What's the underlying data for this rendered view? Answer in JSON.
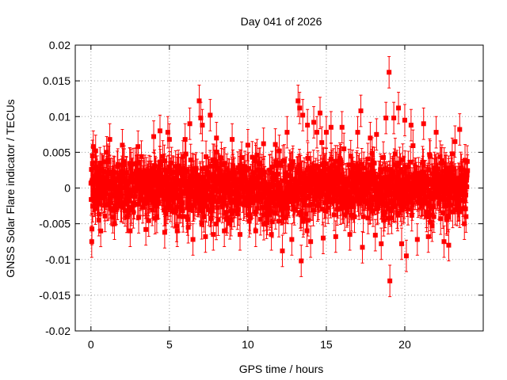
{
  "chart_data": {
    "type": "scatter",
    "title": "Day 041 of 2026",
    "xlabel": "GPS time / hours",
    "ylabel": "GNSS Solar Flare indicator / TECUs",
    "xlim": [
      -1,
      25
    ],
    "ylim": [
      -0.02,
      0.02
    ],
    "xticks": [
      0,
      5,
      10,
      15,
      20
    ],
    "yticks": [
      -0.02,
      -0.015,
      -0.01,
      -0.005,
      0,
      0.005,
      0.01,
      0.015,
      0.02
    ],
    "ytick_labels": [
      "-0.02",
      "-0.015",
      "-0.01",
      "-0.005",
      "0",
      "0.005",
      "0.01",
      "0.015",
      "0.02"
    ],
    "xtick_labels": [
      "0",
      "5",
      "10",
      "15",
      "20"
    ],
    "grid": true,
    "series": [
      {
        "color": "#ff0000",
        "marker": "square",
        "error_bars": true,
        "error": 0.0022,
        "points": [
          [
            0.05,
            -0.0075
          ],
          [
            0.1,
            0.0045
          ],
          [
            0.15,
            0.0058
          ],
          [
            0.3,
            0.0052
          ],
          [
            0.5,
            -0.0045
          ],
          [
            1.0,
            0.005
          ],
          [
            1.2,
            0.0068
          ],
          [
            1.5,
            -0.005
          ],
          [
            2.0,
            0.006
          ],
          [
            2.5,
            -0.006
          ],
          [
            3.0,
            0.0058
          ],
          [
            3.5,
            -0.0058
          ],
          [
            4.0,
            0.0072
          ],
          [
            4.4,
            0.008
          ],
          [
            4.7,
            -0.0062
          ],
          [
            4.9,
            0.0078
          ],
          [
            5.0,
            0.0068
          ],
          [
            5.5,
            -0.006
          ],
          [
            6.0,
            0.0068
          ],
          [
            6.2,
            -0.0055
          ],
          [
            6.3,
            0.009
          ],
          [
            6.5,
            -0.0072
          ],
          [
            6.9,
            0.0122
          ],
          [
            7.0,
            0.0098
          ],
          [
            7.1,
            0.0088
          ],
          [
            7.3,
            -0.0068
          ],
          [
            7.6,
            0.0102
          ],
          [
            7.8,
            -0.0065
          ],
          [
            8.0,
            0.007
          ],
          [
            8.5,
            -0.006
          ],
          [
            9.0,
            0.0068
          ],
          [
            9.5,
            -0.0065
          ],
          [
            10.0,
            0.006
          ],
          [
            10.5,
            -0.006
          ],
          [
            11.0,
            0.0062
          ],
          [
            11.5,
            -0.0065
          ],
          [
            12.0,
            0.0052
          ],
          [
            12.2,
            -0.0088
          ],
          [
            12.5,
            0.0078
          ],
          [
            12.8,
            -0.0072
          ],
          [
            13.2,
            0.0122
          ],
          [
            13.3,
            0.0112
          ],
          [
            13.4,
            -0.0102
          ],
          [
            13.5,
            0.0102
          ],
          [
            13.8,
            0.0088
          ],
          [
            14.0,
            -0.0075
          ],
          [
            14.2,
            0.0092
          ],
          [
            14.4,
            0.0078
          ],
          [
            14.6,
            0.0105
          ],
          [
            14.8,
            -0.007
          ],
          [
            15.0,
            0.0078
          ],
          [
            15.3,
            0.0085
          ],
          [
            15.6,
            -0.0068
          ],
          [
            16.0,
            0.0085
          ],
          [
            16.5,
            -0.0065
          ],
          [
            17.0,
            0.0078
          ],
          [
            17.2,
            0.0108
          ],
          [
            17.3,
            -0.0083
          ],
          [
            17.8,
            0.007
          ],
          [
            18.2,
            0.0075
          ],
          [
            18.5,
            -0.0078
          ],
          [
            18.8,
            0.0098
          ],
          [
            19.0,
            0.0162
          ],
          [
            19.05,
            -0.013
          ],
          [
            19.3,
            0.0098
          ],
          [
            19.6,
            0.0112
          ],
          [
            19.8,
            -0.0078
          ],
          [
            20.0,
            0.0095
          ],
          [
            20.1,
            -0.0095
          ],
          [
            20.4,
            0.0088
          ],
          [
            20.8,
            -0.0072
          ],
          [
            21.2,
            0.009
          ],
          [
            21.5,
            -0.0068
          ],
          [
            22.0,
            0.0078
          ],
          [
            22.5,
            -0.0075
          ],
          [
            22.8,
            -0.008
          ],
          [
            23.2,
            0.0065
          ],
          [
            23.5,
            0.0082
          ],
          [
            23.8,
            -0.005
          ],
          [
            23.95,
            0.0015
          ]
        ],
        "noise_band": {
          "x_start": 0.0,
          "x_end": 24.0,
          "amplitude": 0.0048
        }
      }
    ]
  }
}
